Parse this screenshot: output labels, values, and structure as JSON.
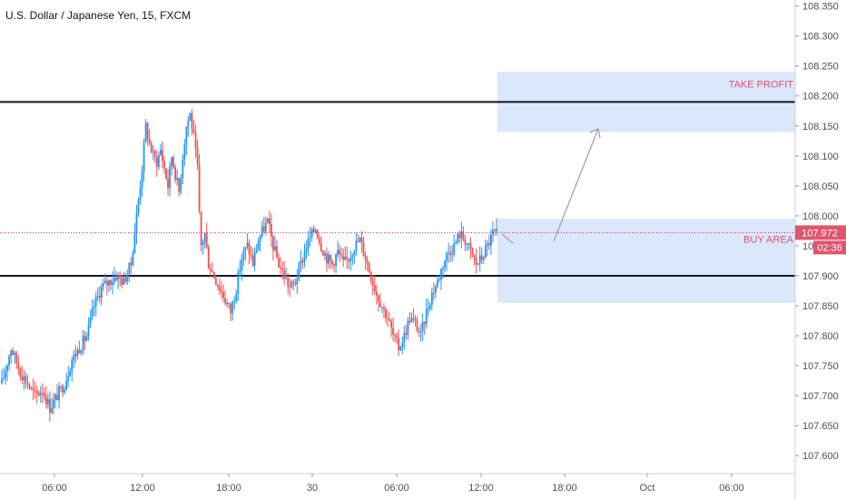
{
  "header": {
    "title": "U.S. Dollar / Japanese Yen, 15, FXCM"
  },
  "colors": {
    "up": "#2196f3",
    "down": "#ef5350",
    "zone": "#dbe7fb",
    "line": "#131722",
    "current_price_line": "#d81b60",
    "badge": "#e0556e",
    "arrow": "#a0a4ab",
    "grid_axis": "#ced2db"
  },
  "chart_data": {
    "type": "candlestick",
    "symbol": "U.S. Dollar / Japanese Yen",
    "timeframe": "15",
    "source": "FXCM",
    "ylim": [
      107.57,
      108.36
    ],
    "y_ticks": [
      "108.350",
      "108.300",
      "108.250",
      "108.200",
      "108.150",
      "108.100",
      "108.050",
      "108.000",
      "107.950",
      "107.900",
      "107.850",
      "107.800",
      "107.750",
      "107.700",
      "107.650",
      "107.600"
    ],
    "x_ticks": [
      "06:00",
      "12:00",
      "18:00",
      "30",
      "06:00",
      "12:00",
      "18:00",
      "Oct",
      "06:00"
    ],
    "horizontal_lines": [
      108.19,
      107.9
    ],
    "zones": [
      {
        "label": "TAKE PROFIT",
        "top": 108.24,
        "bottom": 108.14
      },
      {
        "label": "BUY AREA",
        "top": 107.995,
        "bottom": 107.855
      }
    ],
    "current_price": {
      "value": "107.972",
      "countdown": "02:36"
    },
    "path": [
      [
        0,
        107.72
      ],
      [
        5,
        107.78
      ],
      [
        10,
        107.74
      ],
      [
        14,
        107.72
      ],
      [
        18,
        107.7
      ],
      [
        22,
        107.71
      ],
      [
        26,
        107.68
      ],
      [
        30,
        107.7
      ],
      [
        34,
        107.72
      ],
      [
        38,
        107.76
      ],
      [
        42,
        107.78
      ],
      [
        46,
        107.8
      ],
      [
        50,
        107.85
      ],
      [
        54,
        107.88
      ],
      [
        58,
        107.89
      ],
      [
        62,
        107.9
      ],
      [
        66,
        107.89
      ],
      [
        70,
        107.92
      ],
      [
        73,
        108.0
      ],
      [
        76,
        108.08
      ],
      [
        78,
        108.15
      ],
      [
        80,
        108.12
      ],
      [
        82,
        108.1
      ],
      [
        84,
        108.09
      ],
      [
        86,
        108.11
      ],
      [
        88,
        108.08
      ],
      [
        90,
        108.05
      ],
      [
        92,
        108.1
      ],
      [
        94,
        108.07
      ],
      [
        96,
        108.04
      ],
      [
        98,
        108.1
      ],
      [
        100,
        108.15
      ],
      [
        102,
        108.17
      ],
      [
        104,
        108.13
      ],
      [
        106,
        108.08
      ],
      [
        107,
        108.0
      ],
      [
        108,
        107.95
      ],
      [
        110,
        107.97
      ],
      [
        112,
        107.92
      ],
      [
        115,
        107.9
      ],
      [
        118,
        107.88
      ],
      [
        121,
        107.86
      ],
      [
        124,
        107.84
      ],
      [
        127,
        107.88
      ],
      [
        130,
        107.93
      ],
      [
        133,
        107.95
      ],
      [
        136,
        107.92
      ],
      [
        139,
        107.96
      ],
      [
        142,
        107.98
      ],
      [
        144,
        107.99
      ],
      [
        147,
        107.95
      ],
      [
        150,
        107.92
      ],
      [
        153,
        107.9
      ],
      [
        156,
        107.88
      ],
      [
        159,
        107.89
      ],
      [
        162,
        107.92
      ],
      [
        165,
        107.95
      ],
      [
        168,
        107.97
      ],
      [
        170,
        107.98
      ],
      [
        173,
        107.95
      ],
      [
        176,
        107.93
      ],
      [
        179,
        107.92
      ],
      [
        182,
        107.94
      ],
      [
        185,
        107.92
      ],
      [
        188,
        107.93
      ],
      [
        191,
        107.95
      ],
      [
        194,
        107.96
      ],
      [
        197,
        107.93
      ],
      [
        200,
        107.9
      ],
      [
        203,
        107.87
      ],
      [
        206,
        107.85
      ],
      [
        209,
        107.83
      ],
      [
        212,
        107.8
      ],
      [
        215,
        107.78
      ],
      [
        218,
        107.8
      ],
      [
        221,
        107.83
      ],
      [
        224,
        107.82
      ],
      [
        227,
        107.8
      ],
      [
        230,
        107.84
      ],
      [
        233,
        107.87
      ],
      [
        236,
        107.89
      ],
      [
        239,
        107.92
      ],
      [
        242,
        107.94
      ],
      [
        245,
        107.95
      ],
      [
        248,
        107.97
      ],
      [
        251,
        107.96
      ],
      [
        254,
        107.94
      ],
      [
        257,
        107.92
      ],
      [
        260,
        107.93
      ],
      [
        263,
        107.95
      ],
      [
        266,
        107.97
      ],
      [
        268,
        107.97
      ]
    ]
  }
}
